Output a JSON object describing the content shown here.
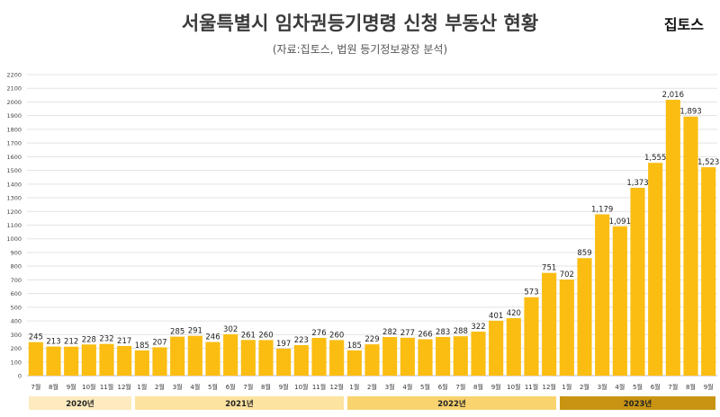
{
  "header": {
    "title": "서울특별시 임차권등기명령 신청 부동산 현황",
    "subtitle": "(자료:집토스, 법원 등기정보광장 분석)",
    "brand": "집토스"
  },
  "chart_data": {
    "type": "bar",
    "title": "서울특별시 임차권등기명령 신청 부동산 현황",
    "subtitle": "(자료:집토스, 법원 등기정보광장 분석)",
    "categories": [
      "7월",
      "8월",
      "9월",
      "10월",
      "11월",
      "12월",
      "1월",
      "2월",
      "3월",
      "4월",
      "5월",
      "6월",
      "7월",
      "8월",
      "9월",
      "10월",
      "11월",
      "12월",
      "1월",
      "2월",
      "3월",
      "4월",
      "5월",
      "6월",
      "7월",
      "8월",
      "9월",
      "10월",
      "11월",
      "12월",
      "1월",
      "2월",
      "3월",
      "4월",
      "5월",
      "6월",
      "7월",
      "8월",
      "9월"
    ],
    "values": [
      245,
      213,
      212,
      228,
      232,
      217,
      185,
      207,
      285,
      291,
      246,
      302,
      261,
      260,
      197,
      223,
      276,
      260,
      185,
      229,
      282,
      277,
      266,
      283,
      288,
      322,
      401,
      420,
      573,
      751,
      702,
      859,
      1179,
      1091,
      1373,
      1555,
      2016,
      1893,
      1523
    ],
    "value_labels": [
      "245",
      "213",
      "212",
      "228",
      "232",
      "217",
      "185",
      "207",
      "285",
      "291",
      "246",
      "302",
      "261",
      "260",
      "197",
      "223",
      "276",
      "260",
      "185",
      "229",
      "282",
      "277",
      "266",
      "283",
      "288",
      "322",
      "401",
      "420",
      "573",
      "751",
      "702",
      "859",
      "1,179",
      "1,091",
      "1,373",
      "1,555",
      "2,016",
      "1,893",
      "1,523"
    ],
    "year_groups": [
      {
        "label": "2020년",
        "count": 6,
        "color": "#fdebbf"
      },
      {
        "label": "2021년",
        "count": 12,
        "color": "#fde3a0"
      },
      {
        "label": "2022년",
        "count": 12,
        "color": "#f8d36e"
      },
      {
        "label": "2023년",
        "count": 9,
        "color": "#c89412"
      }
    ],
    "yticks": [
      0,
      100,
      200,
      300,
      400,
      500,
      600,
      700,
      800,
      900,
      1000,
      1100,
      1200,
      1300,
      1400,
      1500,
      1600,
      1700,
      1800,
      1900,
      2000,
      2100,
      2200
    ],
    "ylim": [
      0,
      2200
    ],
    "grid": true,
    "bar_color": "#fbbd12"
  }
}
